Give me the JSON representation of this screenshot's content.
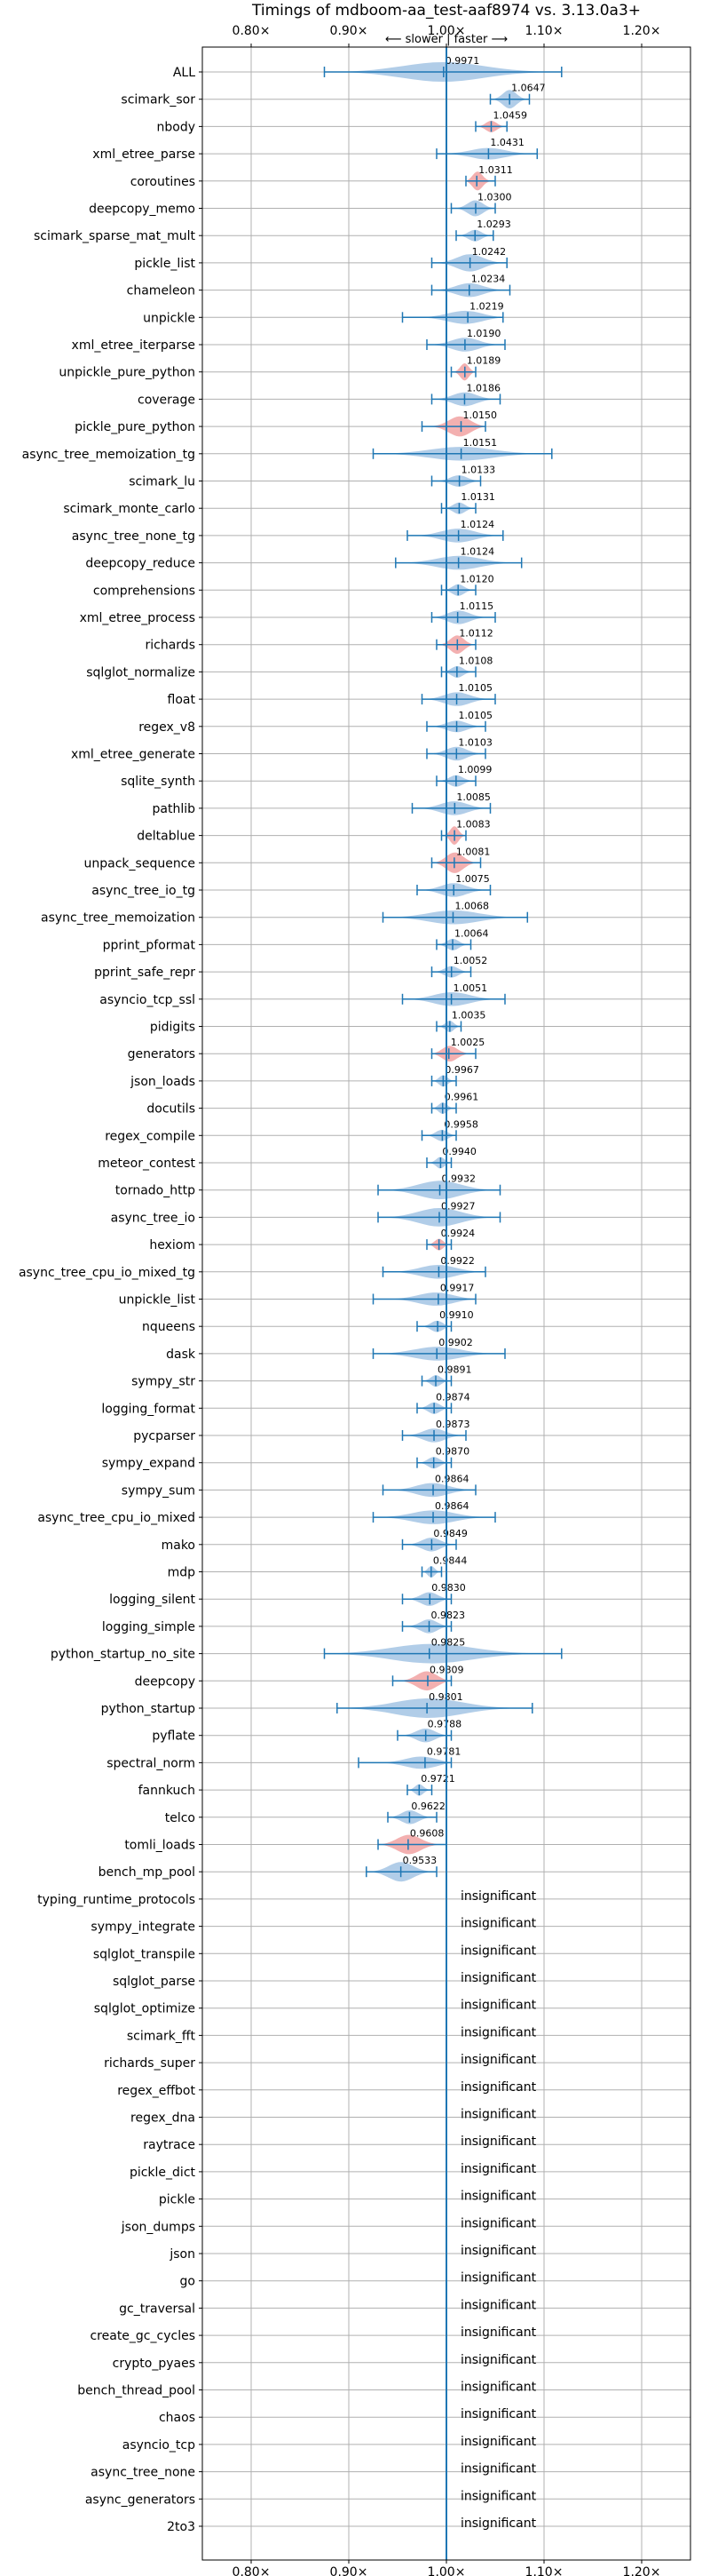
{
  "chart_data": {
    "type": "violin",
    "title": "Timings of mdboom-aa_test-aaf8974 vs. 3.13.0a3+",
    "direction_label": "⟵ slower  |  faster ⟶",
    "xlim": [
      0.75,
      1.25
    ],
    "x_ticks": [
      0.8,
      0.9,
      1.0,
      1.1,
      1.2
    ],
    "x_tick_labels": [
      "0.80×",
      "0.90×",
      "1.00×",
      "1.10×",
      "1.20×"
    ],
    "grid": true,
    "insignificant_label": "insignificant",
    "benchmarks": [
      {
        "name": "ALL",
        "value": 0.9971,
        "label": "0.9971",
        "color": "blue",
        "lo": 0.875,
        "hi": 1.118,
        "width": 0.85
      },
      {
        "name": "scimark_sor",
        "value": 1.0647,
        "label": "1.0647",
        "color": "blue",
        "lo": 1.045,
        "hi": 1.085,
        "width": 0.8
      },
      {
        "name": "nbody",
        "value": 1.0459,
        "label": "1.0459",
        "color": "red",
        "lo": 1.03,
        "hi": 1.062,
        "width": 0.5
      },
      {
        "name": "xml_etree_parse",
        "value": 1.0431,
        "label": "1.0431",
        "color": "blue",
        "lo": 0.99,
        "hi": 1.093,
        "width": 0.5
      },
      {
        "name": "coroutines",
        "value": 1.0311,
        "label": "1.0311",
        "color": "red",
        "lo": 1.02,
        "hi": 1.05,
        "width": 0.85
      },
      {
        "name": "deepcopy_memo",
        "value": 1.03,
        "label": "1.0300",
        "color": "blue",
        "lo": 1.005,
        "hi": 1.05,
        "width": 0.7
      },
      {
        "name": "scimark_sparse_mat_mult",
        "value": 1.0293,
        "label": "1.0293",
        "color": "blue",
        "lo": 1.01,
        "hi": 1.048,
        "width": 0.5
      },
      {
        "name": "pickle_list",
        "value": 1.0242,
        "label": "1.0242",
        "color": "blue",
        "lo": 0.985,
        "hi": 1.062,
        "width": 0.75
      },
      {
        "name": "chameleon",
        "value": 1.0234,
        "label": "1.0234",
        "color": "blue",
        "lo": 0.985,
        "hi": 1.065,
        "width": 0.6
      },
      {
        "name": "unpickle",
        "value": 1.0219,
        "label": "1.0219",
        "color": "blue",
        "lo": 0.955,
        "hi": 1.058,
        "width": 0.6
      },
      {
        "name": "xml_etree_iterparse",
        "value": 1.019,
        "label": "1.0190",
        "color": "blue",
        "lo": 0.98,
        "hi": 1.06,
        "width": 0.6
      },
      {
        "name": "unpickle_pure_python",
        "value": 1.0189,
        "label": "1.0189",
        "color": "red",
        "lo": 1.005,
        "hi": 1.03,
        "width": 0.75
      },
      {
        "name": "coverage",
        "value": 1.0186,
        "label": "1.0186",
        "color": "blue",
        "lo": 0.985,
        "hi": 1.055,
        "width": 0.6
      },
      {
        "name": "pickle_pure_python",
        "value": 1.015,
        "label": "1.0150",
        "color": "red",
        "lo": 0.975,
        "hi": 1.04,
        "width": 0.9
      },
      {
        "name": "async_tree_memoization_tg",
        "value": 1.0151,
        "label": "1.0151",
        "color": "blue",
        "lo": 0.925,
        "hi": 1.108,
        "width": 0.6
      },
      {
        "name": "scimark_lu",
        "value": 1.0133,
        "label": "1.0133",
        "color": "blue",
        "lo": 0.985,
        "hi": 1.035,
        "width": 0.5
      },
      {
        "name": "scimark_monte_carlo",
        "value": 1.0131,
        "label": "1.0131",
        "color": "blue",
        "lo": 0.995,
        "hi": 1.03,
        "width": 0.5
      },
      {
        "name": "async_tree_none_tg",
        "value": 1.0124,
        "label": "1.0124",
        "color": "blue",
        "lo": 0.96,
        "hi": 1.058,
        "width": 0.6
      },
      {
        "name": "deepcopy_reduce",
        "value": 1.0124,
        "label": "1.0124",
        "color": "blue",
        "lo": 0.948,
        "hi": 1.077,
        "width": 0.6
      },
      {
        "name": "comprehensions",
        "value": 1.012,
        "label": "1.0120",
        "color": "blue",
        "lo": 0.995,
        "hi": 1.03,
        "width": 0.5
      },
      {
        "name": "xml_etree_process",
        "value": 1.0115,
        "label": "1.0115",
        "color": "blue",
        "lo": 0.985,
        "hi": 1.05,
        "width": 0.6
      },
      {
        "name": "richards",
        "value": 1.0112,
        "label": "1.0112",
        "color": "red",
        "lo": 0.99,
        "hi": 1.03,
        "width": 0.8
      },
      {
        "name": "sqlglot_normalize",
        "value": 1.0108,
        "label": "1.0108",
        "color": "blue",
        "lo": 0.995,
        "hi": 1.03,
        "width": 0.5
      },
      {
        "name": "float",
        "value": 1.0105,
        "label": "1.0105",
        "color": "blue",
        "lo": 0.975,
        "hi": 1.05,
        "width": 0.6
      },
      {
        "name": "regex_v8",
        "value": 1.0105,
        "label": "1.0105",
        "color": "blue",
        "lo": 0.98,
        "hi": 1.04,
        "width": 0.5
      },
      {
        "name": "xml_etree_generate",
        "value": 1.0103,
        "label": "1.0103",
        "color": "blue",
        "lo": 0.98,
        "hi": 1.04,
        "width": 0.6
      },
      {
        "name": "sqlite_synth",
        "value": 1.0099,
        "label": "1.0099",
        "color": "blue",
        "lo": 0.99,
        "hi": 1.03,
        "width": 0.5
      },
      {
        "name": "pathlib",
        "value": 1.0085,
        "label": "1.0085",
        "color": "blue",
        "lo": 0.965,
        "hi": 1.045,
        "width": 0.6
      },
      {
        "name": "deltablue",
        "value": 1.0083,
        "label": "1.0083",
        "color": "red",
        "lo": 0.995,
        "hi": 1.02,
        "width": 0.8
      },
      {
        "name": "unpack_sequence",
        "value": 1.0081,
        "label": "1.0081",
        "color": "red",
        "lo": 0.985,
        "hi": 1.035,
        "width": 0.9
      },
      {
        "name": "async_tree_io_tg",
        "value": 1.0075,
        "label": "1.0075",
        "color": "blue",
        "lo": 0.97,
        "hi": 1.045,
        "width": 0.6
      },
      {
        "name": "async_tree_memoization",
        "value": 1.0068,
        "label": "1.0068",
        "color": "blue",
        "lo": 0.935,
        "hi": 1.083,
        "width": 0.6
      },
      {
        "name": "pprint_pformat",
        "value": 1.0064,
        "label": "1.0064",
        "color": "blue",
        "lo": 0.99,
        "hi": 1.025,
        "width": 0.5
      },
      {
        "name": "pprint_safe_repr",
        "value": 1.0052,
        "label": "1.0052",
        "color": "blue",
        "lo": 0.985,
        "hi": 1.025,
        "width": 0.5
      },
      {
        "name": "asyncio_tcp_ssl",
        "value": 1.0051,
        "label": "1.0051",
        "color": "blue",
        "lo": 0.955,
        "hi": 1.06,
        "width": 0.6
      },
      {
        "name": "pidigits",
        "value": 1.0035,
        "label": "1.0035",
        "color": "blue",
        "lo": 0.99,
        "hi": 1.015,
        "width": 0.5
      },
      {
        "name": "generators",
        "value": 1.0025,
        "label": "1.0025",
        "color": "red",
        "lo": 0.985,
        "hi": 1.03,
        "width": 0.7
      },
      {
        "name": "json_loads",
        "value": 0.9967,
        "label": "0.9967",
        "color": "blue",
        "lo": 0.985,
        "hi": 1.01,
        "width": 0.5
      },
      {
        "name": "docutils",
        "value": 0.9961,
        "label": "0.9961",
        "color": "blue",
        "lo": 0.985,
        "hi": 1.01,
        "width": 0.5
      },
      {
        "name": "regex_compile",
        "value": 0.9958,
        "label": "0.9958",
        "color": "blue",
        "lo": 0.975,
        "hi": 1.01,
        "width": 0.5
      },
      {
        "name": "meteor_contest",
        "value": 0.994,
        "label": "0.9940",
        "color": "blue",
        "lo": 0.98,
        "hi": 1.005,
        "width": 0.5
      },
      {
        "name": "tornado_http",
        "value": 0.9932,
        "label": "0.9932",
        "color": "blue",
        "lo": 0.93,
        "hi": 1.055,
        "width": 0.8
      },
      {
        "name": "async_tree_io",
        "value": 0.9927,
        "label": "0.9927",
        "color": "blue",
        "lo": 0.93,
        "hi": 1.055,
        "width": 0.8
      },
      {
        "name": "hexiom",
        "value": 0.9924,
        "label": "0.9924",
        "color": "red",
        "lo": 0.98,
        "hi": 1.005,
        "width": 0.5
      },
      {
        "name": "async_tree_cpu_io_mixed_tg",
        "value": 0.9922,
        "label": "0.9922",
        "color": "blue",
        "lo": 0.935,
        "hi": 1.04,
        "width": 0.6
      },
      {
        "name": "unpickle_list",
        "value": 0.9917,
        "label": "0.9917",
        "color": "blue",
        "lo": 0.925,
        "hi": 1.03,
        "width": 0.6
      },
      {
        "name": "nqueens",
        "value": 0.991,
        "label": "0.9910",
        "color": "blue",
        "lo": 0.97,
        "hi": 1.005,
        "width": 0.5
      },
      {
        "name": "dask",
        "value": 0.9902,
        "label": "0.9902",
        "color": "blue",
        "lo": 0.925,
        "hi": 1.06,
        "width": 0.6
      },
      {
        "name": "sympy_str",
        "value": 0.9891,
        "label": "0.9891",
        "color": "blue",
        "lo": 0.975,
        "hi": 1.005,
        "width": 0.5
      },
      {
        "name": "logging_format",
        "value": 0.9874,
        "label": "0.9874",
        "color": "blue",
        "lo": 0.97,
        "hi": 1.005,
        "width": 0.5
      },
      {
        "name": "pycparser",
        "value": 0.9873,
        "label": "0.9873",
        "color": "blue",
        "lo": 0.955,
        "hi": 1.02,
        "width": 0.6
      },
      {
        "name": "sympy_expand",
        "value": 0.987,
        "label": "0.9870",
        "color": "blue",
        "lo": 0.97,
        "hi": 1.005,
        "width": 0.5
      },
      {
        "name": "sympy_sum",
        "value": 0.9864,
        "label": "0.9864",
        "color": "blue",
        "lo": 0.935,
        "hi": 1.03,
        "width": 0.6
      },
      {
        "name": "async_tree_cpu_io_mixed",
        "value": 0.9864,
        "label": "0.9864",
        "color": "blue",
        "lo": 0.925,
        "hi": 1.05,
        "width": 0.6
      },
      {
        "name": "mako",
        "value": 0.9849,
        "label": "0.9849",
        "color": "blue",
        "lo": 0.955,
        "hi": 1.01,
        "width": 0.6
      },
      {
        "name": "mdp",
        "value": 0.9844,
        "label": "0.9844",
        "color": "blue",
        "lo": 0.975,
        "hi": 0.995,
        "width": 0.5
      },
      {
        "name": "logging_silent",
        "value": 0.983,
        "label": "0.9830",
        "color": "blue",
        "lo": 0.955,
        "hi": 1.005,
        "width": 0.6
      },
      {
        "name": "logging_simple",
        "value": 0.9823,
        "label": "0.9823",
        "color": "blue",
        "lo": 0.955,
        "hi": 1.005,
        "width": 0.6
      },
      {
        "name": "python_startup_no_site",
        "value": 0.9825,
        "label": "0.9825",
        "color": "blue",
        "lo": 0.875,
        "hi": 1.118,
        "width": 0.85
      },
      {
        "name": "deepcopy",
        "value": 0.9809,
        "label": "0.9809",
        "color": "red",
        "lo": 0.945,
        "hi": 1.005,
        "width": 0.85
      },
      {
        "name": "python_startup",
        "value": 0.9801,
        "label": "0.9801",
        "color": "blue",
        "lo": 0.888,
        "hi": 1.088,
        "width": 0.85
      },
      {
        "name": "pyflate",
        "value": 0.9788,
        "label": "0.9788",
        "color": "blue",
        "lo": 0.95,
        "hi": 1.005,
        "width": 0.6
      },
      {
        "name": "spectral_norm",
        "value": 0.9781,
        "label": "0.9781",
        "color": "blue",
        "lo": 0.91,
        "hi": 1.005,
        "width": 0.6
      },
      {
        "name": "fannkuch",
        "value": 0.9721,
        "label": "0.9721",
        "color": "blue",
        "lo": 0.96,
        "hi": 0.985,
        "width": 0.5
      },
      {
        "name": "telco",
        "value": 0.9622,
        "label": "0.9622",
        "color": "blue",
        "lo": 0.94,
        "hi": 0.99,
        "width": 0.6
      },
      {
        "name": "tomli_loads",
        "value": 0.9608,
        "label": "0.9608",
        "color": "red",
        "lo": 0.93,
        "hi": 1.0,
        "width": 0.85
      },
      {
        "name": "bench_mp_pool",
        "value": 0.9533,
        "label": "0.9533",
        "color": "blue",
        "lo": 0.918,
        "hi": 0.99,
        "width": 0.85
      },
      {
        "name": "typing_runtime_protocols",
        "insignificant": true
      },
      {
        "name": "sympy_integrate",
        "insignificant": true
      },
      {
        "name": "sqlglot_transpile",
        "insignificant": true
      },
      {
        "name": "sqlglot_parse",
        "insignificant": true
      },
      {
        "name": "sqlglot_optimize",
        "insignificant": true
      },
      {
        "name": "scimark_fft",
        "insignificant": true
      },
      {
        "name": "richards_super",
        "insignificant": true
      },
      {
        "name": "regex_effbot",
        "insignificant": true
      },
      {
        "name": "regex_dna",
        "insignificant": true
      },
      {
        "name": "raytrace",
        "insignificant": true
      },
      {
        "name": "pickle_dict",
        "insignificant": true
      },
      {
        "name": "pickle",
        "insignificant": true
      },
      {
        "name": "json_dumps",
        "insignificant": true
      },
      {
        "name": "json",
        "insignificant": true
      },
      {
        "name": "go",
        "insignificant": true
      },
      {
        "name": "gc_traversal",
        "insignificant": true
      },
      {
        "name": "create_gc_cycles",
        "insignificant": true
      },
      {
        "name": "crypto_pyaes",
        "insignificant": true
      },
      {
        "name": "bench_thread_pool",
        "insignificant": true
      },
      {
        "name": "chaos",
        "insignificant": true
      },
      {
        "name": "asyncio_tcp",
        "insignificant": true
      },
      {
        "name": "async_tree_none",
        "insignificant": true
      },
      {
        "name": "async_generators",
        "insignificant": true
      },
      {
        "name": "2to3",
        "insignificant": true
      }
    ],
    "colors": {
      "blue_fill": "#a9c8e6",
      "red_fill": "#f2a7a7",
      "line": "#1f77b4",
      "grid": "#b0b0b0"
    }
  }
}
